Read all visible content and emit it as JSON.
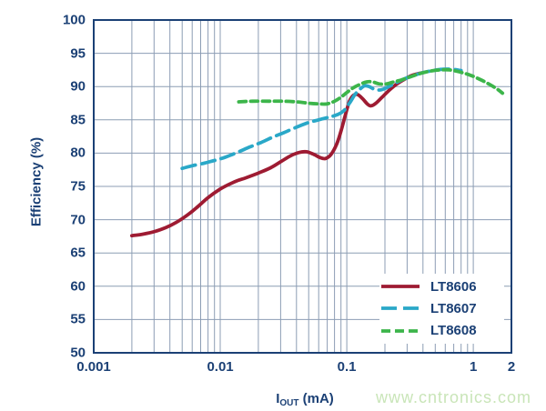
{
  "chart_data": {
    "type": "line",
    "title": "",
    "ylabel": "Efficiency (%)",
    "xlabel": {
      "base": "I",
      "sub": "OUT",
      "unit": " (mA)"
    },
    "x_scale": "log",
    "xlim": [
      0.001,
      2
    ],
    "ylim": [
      50,
      100
    ],
    "x_ticks": [
      0.001,
      0.01,
      0.1,
      1,
      2
    ],
    "x_tick_labels": [
      "0.001",
      "0.01",
      "0.1",
      "1",
      "2"
    ],
    "y_ticks": [
      50,
      55,
      60,
      65,
      70,
      75,
      80,
      85,
      90,
      95,
      100
    ],
    "grid": "log-minor",
    "legend_position": "bottom-right",
    "series": [
      {
        "name": "LT8606",
        "color": "#9e1b32",
        "dash": "solid",
        "points": [
          [
            0.002,
            67.6
          ],
          [
            0.0024,
            67.8
          ],
          [
            0.003,
            68.2
          ],
          [
            0.0037,
            68.8
          ],
          [
            0.0045,
            69.6
          ],
          [
            0.0055,
            70.7
          ],
          [
            0.0065,
            71.8
          ],
          [
            0.008,
            73.3
          ],
          [
            0.01,
            74.6
          ],
          [
            0.013,
            75.7
          ],
          [
            0.016,
            76.3
          ],
          [
            0.02,
            77.0
          ],
          [
            0.025,
            77.8
          ],
          [
            0.03,
            78.7
          ],
          [
            0.036,
            79.6
          ],
          [
            0.042,
            80.1
          ],
          [
            0.048,
            80.2
          ],
          [
            0.055,
            79.8
          ],
          [
            0.062,
            79.3
          ],
          [
            0.068,
            79.2
          ],
          [
            0.075,
            79.8
          ],
          [
            0.083,
            81.3
          ],
          [
            0.09,
            83.3
          ],
          [
            0.098,
            85.9
          ],
          [
            0.105,
            87.8
          ],
          [
            0.113,
            88.7
          ],
          [
            0.122,
            88.8
          ],
          [
            0.133,
            88.2
          ],
          [
            0.145,
            87.4
          ],
          [
            0.155,
            87.1
          ],
          [
            0.17,
            87.5
          ],
          [
            0.19,
            88.4
          ],
          [
            0.215,
            89.4
          ],
          [
            0.245,
            90.3
          ],
          [
            0.28,
            91.0
          ],
          [
            0.32,
            91.6
          ],
          [
            0.36,
            91.9
          ],
          [
            0.4,
            92.1
          ]
        ]
      },
      {
        "name": "LT8607",
        "color": "#2aa8c8",
        "dash": "long-dash",
        "points": [
          [
            0.005,
            77.7
          ],
          [
            0.006,
            78.1
          ],
          [
            0.0075,
            78.5
          ],
          [
            0.009,
            78.9
          ],
          [
            0.011,
            79.4
          ],
          [
            0.014,
            80.2
          ],
          [
            0.017,
            80.9
          ],
          [
            0.021,
            81.6
          ],
          [
            0.026,
            82.4
          ],
          [
            0.032,
            83.1
          ],
          [
            0.04,
            83.9
          ],
          [
            0.05,
            84.6
          ],
          [
            0.06,
            85.0
          ],
          [
            0.072,
            85.4
          ],
          [
            0.085,
            85.8
          ],
          [
            0.095,
            86.4
          ],
          [
            0.105,
            87.5
          ],
          [
            0.115,
            88.7
          ],
          [
            0.125,
            89.5
          ],
          [
            0.138,
            90.1
          ],
          [
            0.15,
            90.0
          ],
          [
            0.165,
            89.6
          ],
          [
            0.185,
            89.5
          ],
          [
            0.21,
            89.9
          ],
          [
            0.24,
            90.5
          ],
          [
            0.28,
            91.1
          ],
          [
            0.33,
            91.6
          ],
          [
            0.4,
            92.1
          ],
          [
            0.48,
            92.4
          ],
          [
            0.57,
            92.6
          ],
          [
            0.68,
            92.6
          ],
          [
            0.8,
            92.4
          ]
        ]
      },
      {
        "name": "LT8608",
        "color": "#3cb54a",
        "dash": "short-dash",
        "points": [
          [
            0.014,
            87.7
          ],
          [
            0.018,
            87.8
          ],
          [
            0.024,
            87.8
          ],
          [
            0.031,
            87.8
          ],
          [
            0.04,
            87.7
          ],
          [
            0.05,
            87.5
          ],
          [
            0.06,
            87.4
          ],
          [
            0.07,
            87.4
          ],
          [
            0.08,
            87.8
          ],
          [
            0.09,
            88.4
          ],
          [
            0.1,
            89.1
          ],
          [
            0.112,
            89.8
          ],
          [
            0.126,
            90.3
          ],
          [
            0.143,
            90.7
          ],
          [
            0.16,
            90.7
          ],
          [
            0.18,
            90.4
          ],
          [
            0.205,
            90.4
          ],
          [
            0.235,
            90.7
          ],
          [
            0.27,
            91.0
          ],
          [
            0.31,
            91.4
          ],
          [
            0.37,
            91.9
          ],
          [
            0.45,
            92.3
          ],
          [
            0.55,
            92.5
          ],
          [
            0.65,
            92.5
          ],
          [
            0.78,
            92.2
          ],
          [
            0.95,
            91.7
          ],
          [
            1.15,
            91.0
          ],
          [
            1.35,
            90.3
          ],
          [
            1.55,
            89.6
          ],
          [
            1.7,
            89.0
          ]
        ]
      }
    ]
  },
  "watermark": {
    "text": "www.cntronics.com",
    "color": "#c9e5b8"
  },
  "colors": {
    "axis": "#1b4075",
    "grid": "#8c9db4",
    "background": "#ffffff"
  }
}
